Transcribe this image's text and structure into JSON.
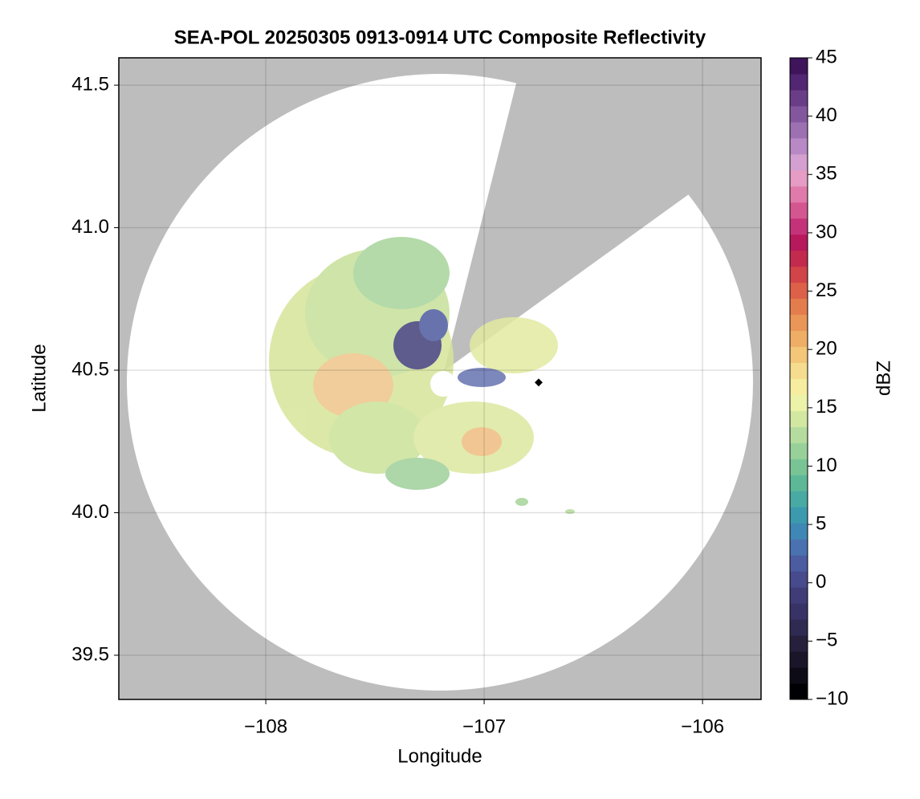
{
  "chart_data": {
    "type": "heatmap",
    "title": "SEA-POL 20250305 0913-0914 UTC Composite Reflectivity",
    "x_label": "Longitude",
    "y_label": "Latitude",
    "xlim": [
      -108.673,
      -105.732
    ],
    "ylim": [
      39.345,
      41.596
    ],
    "xticks": [
      {
        "value": -108,
        "label": "−108"
      },
      {
        "value": -107,
        "label": "−107"
      },
      {
        "value": -106,
        "label": "−106"
      }
    ],
    "yticks": [
      39.5,
      {
        "value": 40,
        "label": "40.0"
      },
      40.5,
      {
        "value": 41,
        "label": "41.0"
      },
      41.5
    ],
    "grid": true,
    "colorbar": {
      "label": "dBZ",
      "lim": [
        -10,
        45
      ],
      "ticks": [
        {
          "value": -10,
          "label": "−10"
        },
        {
          "value": -5,
          "label": "−5"
        },
        0,
        5,
        10,
        15,
        20,
        25,
        30,
        35,
        40,
        45
      ],
      "colors": [
        "#000004",
        "#0d0b16",
        "#1a1528",
        "#26203c",
        "#2f2a52",
        "#383366",
        "#3f3c78",
        "#474a8c",
        "#4b5ca0",
        "#4a72b0",
        "#3f87b4",
        "#3b9aae",
        "#48aaa2",
        "#5db898",
        "#79c495",
        "#98d09a",
        "#b5dc9e",
        "#d2e8a0",
        "#ecf2a8",
        "#f6eda0",
        "#f5dc8e",
        "#f3c679",
        "#efae66",
        "#ea9658",
        "#e47d4e",
        "#dc6148",
        "#d14448",
        "#c42a4e",
        "#b8185c",
        "#c4337a",
        "#d45690",
        "#e07aaa",
        "#e69cc4",
        "#d3a0d0",
        "#b889c4",
        "#9d70b2",
        "#83579e",
        "#6a3d88",
        "#522672",
        "#3e145a"
      ]
    }
  }
}
